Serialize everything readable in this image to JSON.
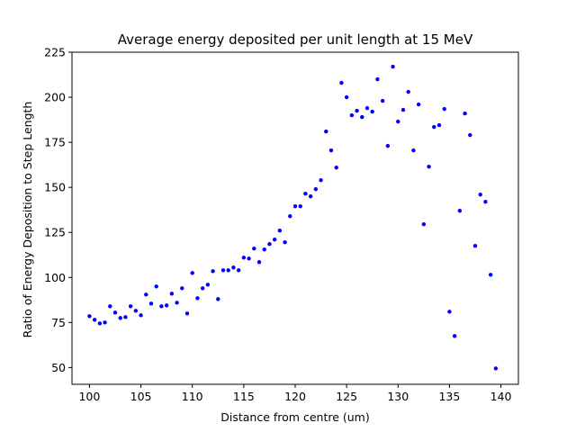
{
  "chart_data": {
    "type": "scatter",
    "title": "Average energy deposited per unit length at 15 MeV",
    "xlabel": "Distance from centre (um)",
    "ylabel": "Ratio of Energy Deposition to Step Length",
    "xlim": [
      98.3,
      141.7
    ],
    "ylim": [
      40.7,
      225
    ],
    "xticks": [
      100,
      105,
      110,
      115,
      120,
      125,
      130,
      135,
      140
    ],
    "yticks": [
      50,
      75,
      100,
      125,
      150,
      175,
      200,
      225
    ],
    "grid": false,
    "marker_color": "#0000ff",
    "series": [
      {
        "x": [
          100.0,
          100.5,
          101.0,
          101.5,
          102.0,
          102.5,
          103.0,
          103.5,
          104.0,
          104.5,
          105.0,
          105.5,
          106.0,
          106.5,
          107.0,
          107.5,
          108.0,
          108.5,
          109.0,
          109.5,
          110.0,
          110.5,
          111.0,
          111.5,
          112.0,
          112.5,
          113.0,
          113.5,
          114.0,
          114.5,
          115.0,
          115.5,
          116.0,
          116.5,
          117.0,
          117.5,
          118.0,
          118.5,
          119.0,
          119.5,
          120.0,
          120.5,
          121.0,
          121.5,
          122.0,
          122.5,
          123.0,
          123.5,
          124.0,
          124.5,
          125.0,
          125.5,
          126.0,
          126.5,
          127.0,
          127.5,
          128.0,
          128.5,
          129.0,
          129.5,
          130.0,
          130.5,
          131.0,
          131.5,
          132.0,
          132.5,
          133.0,
          133.5,
          134.0,
          134.5,
          135.0,
          135.5,
          136.0,
          136.5,
          137.0,
          137.5,
          138.0,
          138.5,
          139.0,
          139.5
        ],
        "y": [
          78.5,
          76.5,
          74.5,
          75,
          84,
          80.5,
          77.5,
          78,
          84,
          81.5,
          79,
          90.5,
          85.5,
          95,
          84,
          84.5,
          91,
          86,
          94,
          80,
          102.5,
          88.5,
          94,
          96,
          103.5,
          88,
          104,
          104,
          105.5,
          104,
          111,
          110.5,
          116,
          108.5,
          115.5,
          118.5,
          121,
          126,
          119.5,
          134,
          139.5,
          139.5,
          146.5,
          145,
          149,
          154,
          181,
          170.5,
          161,
          208,
          200,
          190,
          192.5,
          189,
          194,
          192,
          210,
          198,
          173,
          217,
          186.5,
          193,
          203,
          170.5,
          196,
          129.5,
          161.5,
          183.5,
          184.5,
          193.5,
          81,
          67.5,
          137,
          191,
          179,
          117.5,
          146,
          142,
          101.5,
          49.5
        ]
      }
    ]
  }
}
